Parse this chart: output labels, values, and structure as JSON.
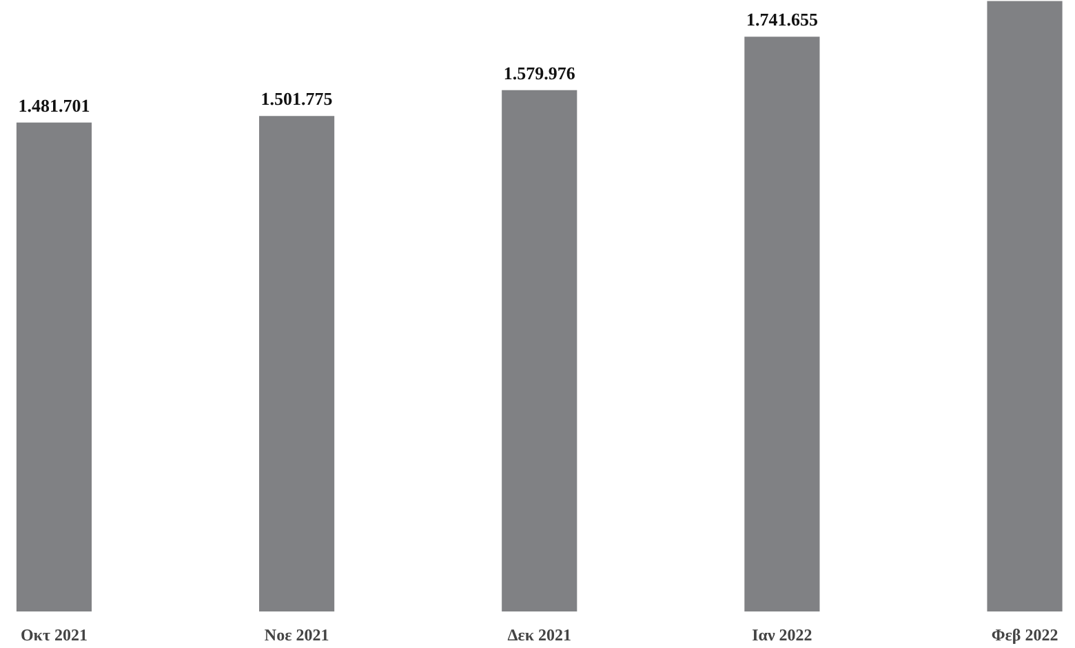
{
  "chart_data": {
    "type": "bar",
    "categories": [
      "Οκτ 2021",
      "Νοε 2021",
      "Δεκ 2021",
      "Ιαν 2022",
      "Φεβ 2022"
    ],
    "values": [
      1481701,
      1501775,
      1579976,
      1741655,
      1850000
    ],
    "value_labels": [
      "1.481.701",
      "1.501.775",
      "1.579.976",
      "1.741.655",
      null
    ],
    "color": "#808184"
  }
}
